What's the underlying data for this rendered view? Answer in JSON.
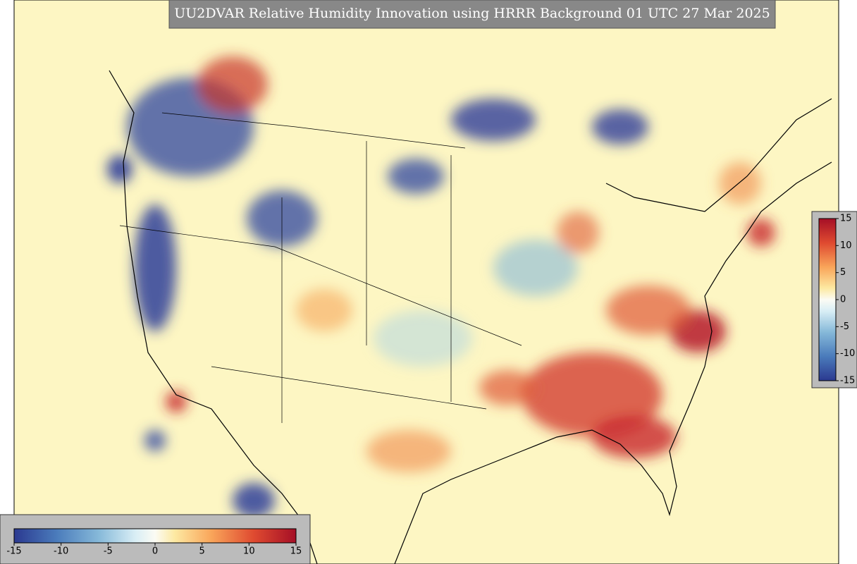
{
  "title": "UU2DVAR Relative Humidity Innovation using HRRR Background 01 UTC 27 Mar 2025",
  "colorbar_horizontal": {
    "lim": [
      -15,
      15
    ],
    "ticks": [
      -15,
      -10,
      -5,
      0,
      5,
      10,
      15
    ]
  },
  "colorbar_vertical": {
    "lim": [
      -15,
      15
    ],
    "ticks": [
      15,
      10,
      5,
      0,
      -5,
      -10,
      -15
    ]
  }
}
